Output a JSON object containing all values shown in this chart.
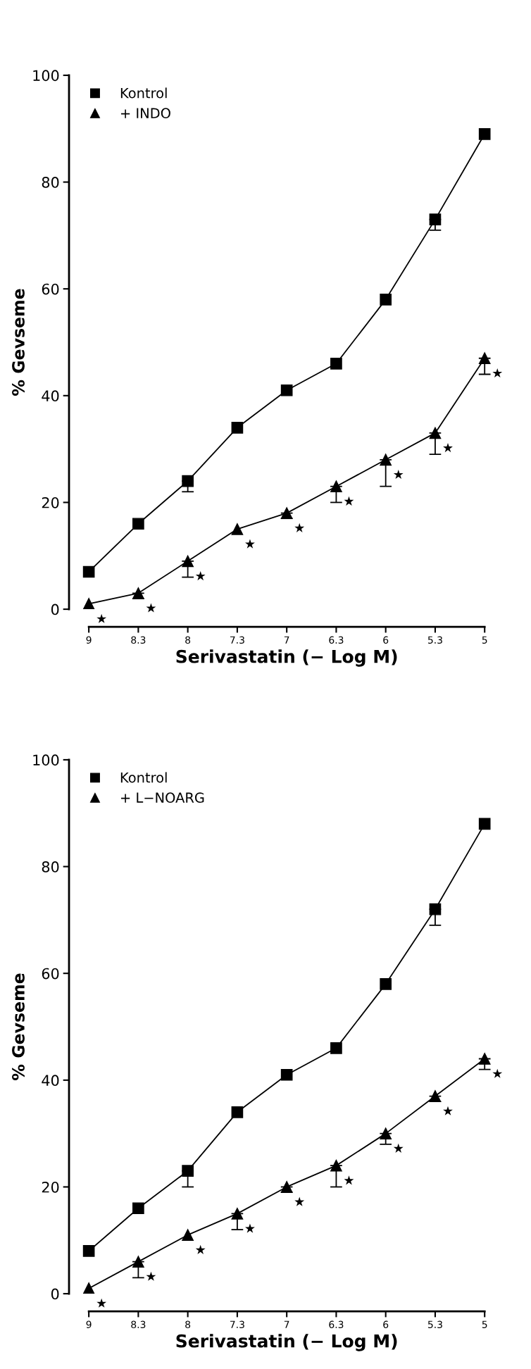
{
  "chart_data": [
    {
      "type": "line",
      "xlabel": "Serivastatin (− Log M)",
      "ylabel": "% Gevseme",
      "categories": [
        "9",
        "8.3",
        "8",
        "7.3",
        "7",
        "6.3",
        "6",
        "5.3",
        "5"
      ],
      "ylim": [
        0,
        100
      ],
      "yticks": [
        0,
        20,
        40,
        60,
        80,
        100
      ],
      "legend": "top left",
      "line_style": "solid",
      "series": [
        {
          "name": "Kontrol",
          "color": "#000000",
          "marker": "square",
          "values": [
            8,
            16,
            23,
            34,
            41,
            46,
            58,
            72,
            88
          ],
          "errors": [
            null,
            null,
            [
              20,
              23
            ],
            null,
            null,
            null,
            null,
            [
              69,
              72
            ],
            null
          ]
        },
        {
          "name": "+ L−NOARG",
          "color": "#000000",
          "marker": "triangle",
          "values": [
            1,
            6,
            11,
            15,
            20,
            24,
            30,
            37,
            44
          ],
          "errors": [
            null,
            [
              3,
              6
            ],
            null,
            [
              12,
              15
            ],
            [
              19,
              20
            ],
            [
              20,
              24
            ],
            [
              28,
              30
            ],
            [
              36,
              37
            ],
            [
              42,
              44
            ]
          ]
        }
      ],
      "annotations": [
        {
          "text": "★",
          "x": "9",
          "y": 1
        },
        {
          "text": "★",
          "x": "8.3",
          "y": 6
        },
        {
          "text": "★",
          "x": "8",
          "y": 11
        },
        {
          "text": "★",
          "x": "7.3",
          "y": 15
        },
        {
          "text": "★",
          "x": "7",
          "y": 20
        },
        {
          "text": "★",
          "x": "6.3",
          "y": 24
        },
        {
          "text": "★",
          "x": "6",
          "y": 30
        },
        {
          "text": "★",
          "x": "5.3",
          "y": 37
        },
        {
          "text": "★",
          "x": "5",
          "y": 44
        }
      ]
    },
    {
      "type": "line",
      "xlabel": "Serivastatin (− Log M)",
      "ylabel": "% Gevseme",
      "categories": [
        "9",
        "8.3",
        "8",
        "7.3",
        "7",
        "6.3",
        "6",
        "5.3",
        "5"
      ],
      "ylim": [
        0,
        100
      ],
      "yticks": [
        0,
        20,
        40,
        60,
        80,
        100
      ],
      "legend": "top left",
      "line_style": "solid",
      "series": [
        {
          "name": "Kontrol",
          "color": "#000000",
          "marker": "square",
          "values": [
            7,
            16,
            24,
            34,
            41,
            46,
            58,
            73,
            89
          ],
          "errors": [
            null,
            null,
            [
              22,
              24
            ],
            null,
            null,
            null,
            null,
            [
              71,
              73
            ],
            null
          ]
        },
        {
          "name": "+ INDO",
          "color": "#000000",
          "marker": "triangle",
          "values": [
            1,
            3,
            9,
            15,
            18,
            23,
            28,
            33,
            47
          ],
          "errors": [
            null,
            [
              2,
              3
            ],
            [
              6,
              9
            ],
            null,
            [
              17,
              18
            ],
            [
              20,
              23
            ],
            [
              23,
              28
            ],
            [
              29,
              33
            ],
            [
              44,
              47
            ]
          ]
        }
      ],
      "annotations": [
        {
          "text": "★",
          "x": "9",
          "y": 1
        },
        {
          "text": "★",
          "x": "8.3",
          "y": 3
        },
        {
          "text": "★",
          "x": "8",
          "y": 9
        },
        {
          "text": "★",
          "x": "7.3",
          "y": 15
        },
        {
          "text": "★",
          "x": "7",
          "y": 18
        },
        {
          "text": "★",
          "x": "6.3",
          "y": 23
        },
        {
          "text": "★",
          "x": "6",
          "y": 28
        },
        {
          "text": "★",
          "x": "5.3",
          "y": 33
        },
        {
          "text": "★",
          "x": "5",
          "y": 47
        }
      ]
    }
  ]
}
